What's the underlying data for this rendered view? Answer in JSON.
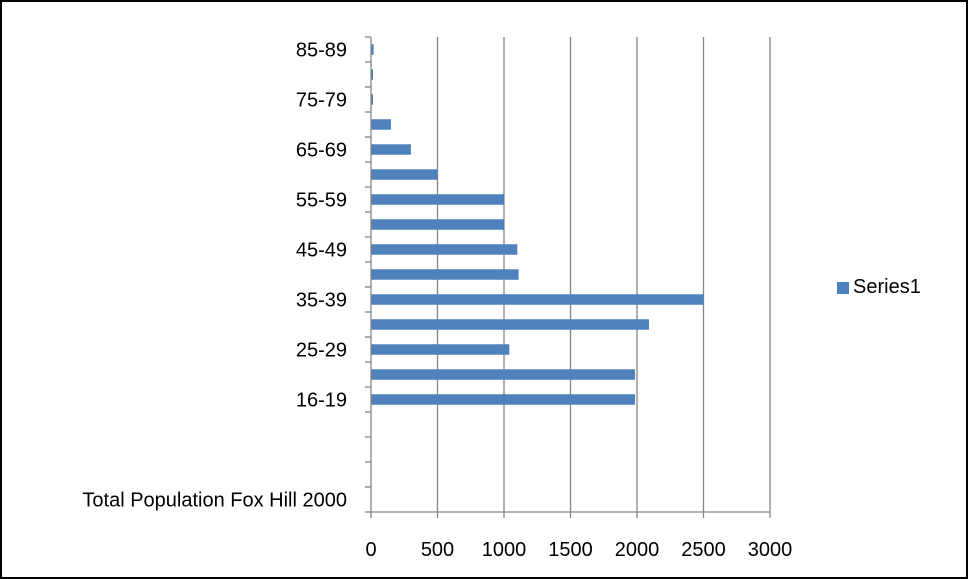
{
  "chart_data": {
    "type": "bar",
    "orientation": "horizontal",
    "categories": [
      "Total Population Fox Hill 2000",
      "",
      "",
      "",
      "16-19",
      "",
      "25-29",
      "",
      "35-39",
      "",
      "45-49",
      "",
      "55-59",
      "",
      "65-69",
      "",
      "75-79",
      "",
      "85-89"
    ],
    "series": [
      {
        "name": "Series1",
        "color": "#4F81BD",
        "values": [
          null,
          null,
          null,
          null,
          1985,
          1985,
          1040,
          2090,
          2500,
          1110,
          1100,
          1000,
          1000,
          500,
          300,
          150,
          15,
          15,
          20
        ]
      }
    ],
    "xlim": [
      0,
      3000
    ],
    "xticks": [
      "0",
      "500",
      "1000",
      "1500",
      "2000",
      "2500",
      "3000"
    ],
    "grid": "vertical",
    "legend_position": "right",
    "title": "",
    "xlabel": "",
    "ylabel": ""
  }
}
